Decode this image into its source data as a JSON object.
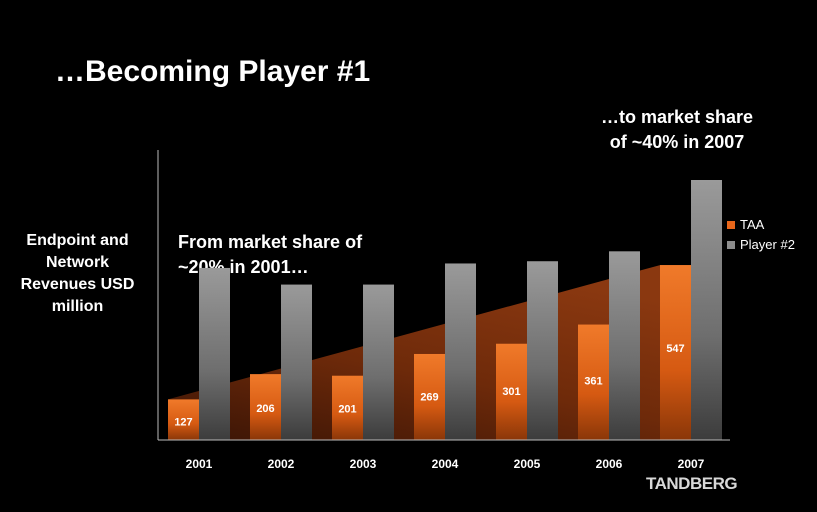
{
  "slide": {
    "title": "…Becoming Player #1",
    "annotation_left": "From market share of ~20% in 2001…",
    "annotation_right": "…to market share of ~40% in 2007",
    "logo": "TANDBERG"
  },
  "chart_data": {
    "type": "bar",
    "title": "",
    "ylabel": "Endpoint and Network Revenues USD million",
    "xlabel": "",
    "categories": [
      "2001",
      "2002",
      "2003",
      "2004",
      "2005",
      "2006",
      "2007"
    ],
    "series": [
      {
        "name": "TAA",
        "values": [
          127,
          206,
          201,
          269,
          301,
          361,
          547
        ],
        "color": "#e8661a",
        "labels_shown": true
      },
      {
        "name": "Player #2",
        "values": [
          538,
          486,
          486,
          552,
          559,
          590,
          813
        ],
        "color": "#8c8c8c",
        "labels_shown": false
      }
    ],
    "ylim": [
      0,
      813
    ],
    "legend_position": "right",
    "grid": false
  }
}
